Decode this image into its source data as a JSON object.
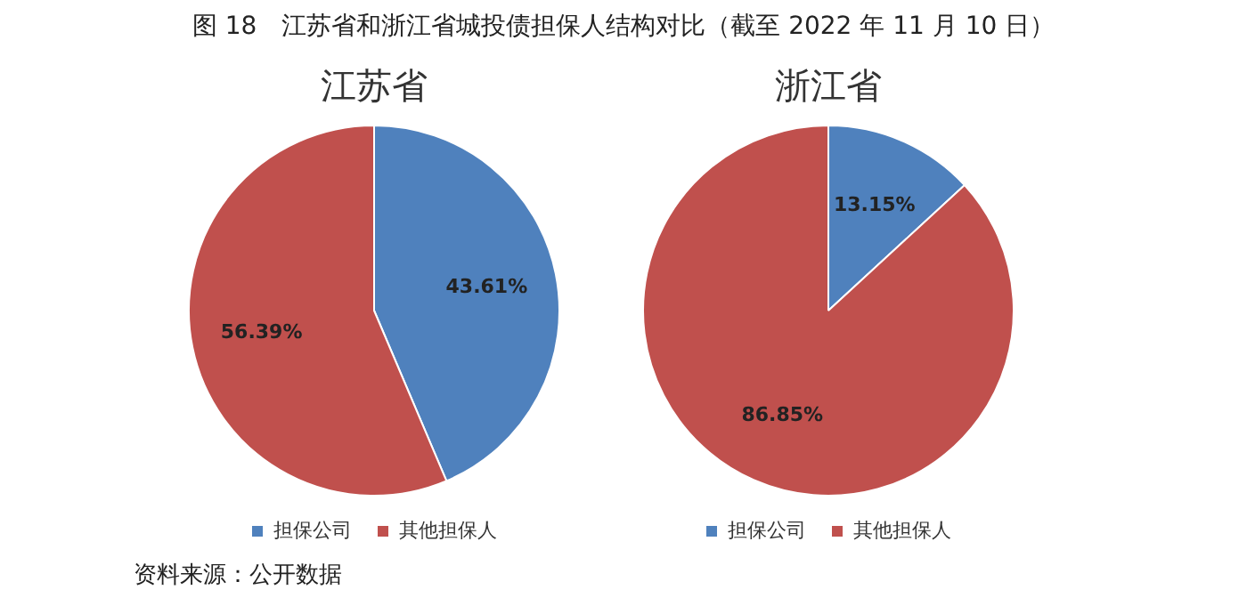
{
  "chart_data": [
    {
      "type": "pie",
      "title": "江苏省",
      "categories": [
        "担保公司",
        "其他担保人"
      ],
      "values": [
        43.61,
        56.39
      ],
      "colors": [
        "#4f81bd",
        "#c0504d"
      ],
      "value_labels": [
        "43.61%",
        "56.39%"
      ],
      "legend": "bottom",
      "annotations": [
        "图 18　江苏省和浙江省城投债担保人结构对比（截至 2022 年 11 月 10 日）"
      ]
    },
    {
      "type": "pie",
      "title": "浙江省",
      "categories": [
        "担保公司",
        "其他担保人"
      ],
      "values": [
        13.15,
        86.85
      ],
      "colors": [
        "#4f81bd",
        "#c0504d"
      ],
      "value_labels": [
        "13.15%",
        "86.85%"
      ],
      "legend": "bottom",
      "annotations": [
        "资料来源：公开数据"
      ]
    }
  ]
}
